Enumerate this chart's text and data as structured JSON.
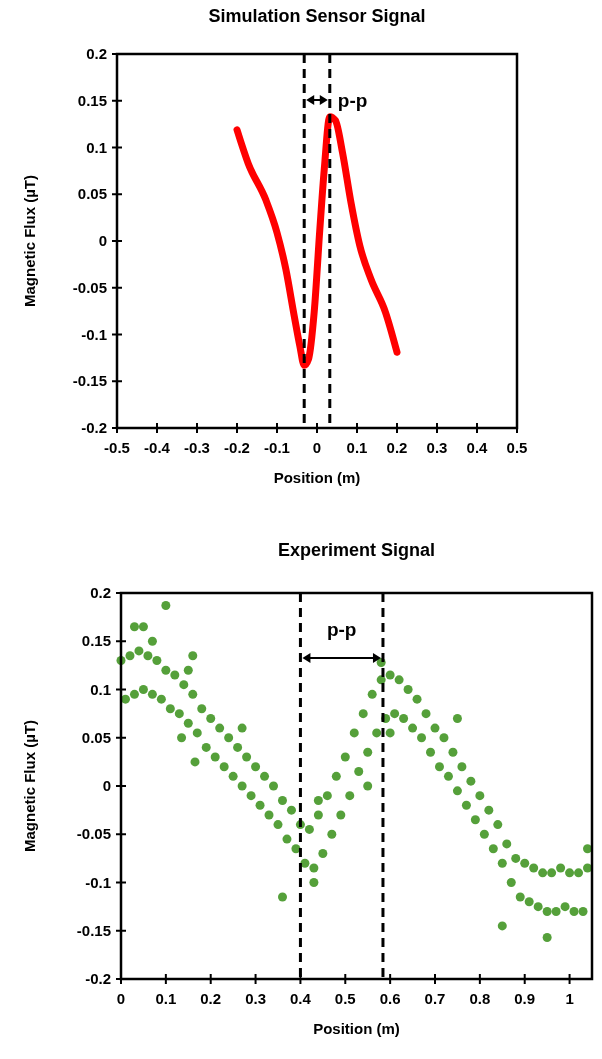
{
  "chart_data": [
    {
      "type": "line",
      "title": "Simulation Sensor Signal",
      "xlabel": "Position (m)",
      "ylabel": "Magnetic Flux (µT)",
      "xlim": [
        -0.5,
        0.5
      ],
      "xticks": [
        -0.5,
        -0.4,
        -0.3,
        -0.2,
        -0.1,
        0,
        0.1,
        0.2,
        0.3,
        0.4,
        0.5
      ],
      "ylim": [
        -0.2,
        0.2
      ],
      "yticks": [
        -0.2,
        -0.15,
        -0.1,
        -0.05,
        0,
        0.05,
        0.1,
        0.15,
        0.2
      ],
      "line_style": "solid",
      "marker": "none",
      "series": [
        {
          "color": "#ff0000",
          "x": [
            -0.2,
            -0.172,
            -0.128,
            -0.1,
            -0.078,
            -0.057,
            -0.043,
            -0.032,
            -0.021,
            -0.007,
            0.007,
            0.018,
            0.032,
            0.046,
            0.064,
            0.085,
            0.107,
            0.135,
            0.171,
            0.2
          ],
          "values": [
            0.119,
            0.083,
            0.044,
            0.009,
            -0.03,
            -0.08,
            -0.112,
            -0.133,
            -0.126,
            -0.076,
            0.012,
            0.076,
            0.133,
            0.129,
            0.094,
            0.041,
            -0.005,
            -0.041,
            -0.076,
            -0.119
          ]
        }
      ],
      "ref_lines": [
        {
          "axis": "x",
          "value": -0.032,
          "color": "#000000",
          "line_style": "dashed"
        },
        {
          "axis": "x",
          "value": 0.032,
          "color": "#000000",
          "line_style": "dashed"
        }
      ],
      "annotations": [
        "p-p"
      ]
    },
    {
      "type": "scatter",
      "title": "Experiment Signal",
      "xlabel": "Position (m)",
      "ylabel": "Magnetic Flux (µT)",
      "xlim": [
        0,
        1.05
      ],
      "xticks": [
        0,
        0.1,
        0.2,
        0.3,
        0.4,
        0.5,
        0.6,
        0.7,
        0.8,
        0.9,
        1
      ],
      "ylim": [
        -0.2,
        0.2
      ],
      "yticks": [
        -0.2,
        -0.15,
        -0.1,
        -0.05,
        0,
        0.05,
        0.1,
        0.15,
        0.2
      ],
      "marker": "circle",
      "series": [
        {
          "color": "#55a03a",
          "x": [
            0,
            0.01,
            0.02,
            0.03,
            0.04,
            0.05,
            0.06,
            0.07,
            0.08,
            0.09,
            0.1,
            0.11,
            0.12,
            0.13,
            0.14,
            0.15,
            0.16,
            0.17,
            0.18,
            0.19,
            0.2,
            0.21,
            0.22,
            0.23,
            0.24,
            0.25,
            0.26,
            0.27,
            0.28,
            0.29,
            0.3,
            0.31,
            0.32,
            0.33,
            0.34,
            0.35,
            0.36,
            0.37,
            0.38,
            0.39,
            0.4,
            0.41,
            0.42,
            0.43,
            0.44,
            0.45,
            0.46,
            0.47,
            0.48,
            0.49,
            0.5,
            0.51,
            0.52,
            0.53,
            0.54,
            0.55,
            0.56,
            0.57,
            0.58,
            0.59,
            0.6,
            0.61,
            0.62,
            0.63,
            0.64,
            0.65,
            0.66,
            0.67,
            0.68,
            0.69,
            0.7,
            0.71,
            0.72,
            0.73,
            0.74,
            0.75,
            0.76,
            0.77,
            0.78,
            0.79,
            0.8,
            0.81,
            0.82,
            0.83,
            0.84,
            0.85,
            0.86,
            0.87,
            0.88,
            0.89,
            0.9,
            0.91,
            0.92,
            0.93,
            0.94,
            0.95,
            0.96,
            0.97,
            0.98,
            0.99,
            1,
            1.01,
            1.02,
            1.03,
            1.04,
            0.1,
            0.03,
            0.05,
            0.07,
            0.16,
            0.15,
            0.135,
            0.165,
            0.36,
            0.43,
            0.85,
            0.95,
            0.27,
            0.58,
            0.6,
            0.75,
            1.04,
            0.44,
            0.55
          ],
          "values": [
            0.13,
            0.09,
            0.135,
            0.095,
            0.14,
            0.1,
            0.135,
            0.095,
            0.13,
            0.09,
            0.12,
            0.08,
            0.115,
            0.075,
            0.105,
            0.065,
            0.095,
            0.055,
            0.08,
            0.04,
            0.07,
            0.03,
            0.06,
            0.02,
            0.05,
            0.01,
            0.04,
            0,
            0.03,
            -0.01,
            0.02,
            -0.02,
            0.01,
            -0.03,
            0,
            -0.04,
            -0.015,
            -0.055,
            -0.025,
            -0.065,
            -0.04,
            -0.08,
            -0.045,
            -0.085,
            -0.03,
            -0.07,
            -0.01,
            -0.05,
            0.01,
            -0.03,
            0.03,
            -0.01,
            0.055,
            0.015,
            0.075,
            0.035,
            0.095,
            0.055,
            0.11,
            0.07,
            0.115,
            0.075,
            0.11,
            0.07,
            0.1,
            0.06,
            0.09,
            0.05,
            0.075,
            0.035,
            0.06,
            0.02,
            0.05,
            0.01,
            0.035,
            -0.005,
            0.02,
            -0.02,
            0.005,
            -0.035,
            -0.01,
            -0.05,
            -0.025,
            -0.065,
            -0.04,
            -0.08,
            -0.06,
            -0.1,
            -0.075,
            -0.115,
            -0.08,
            -0.12,
            -0.085,
            -0.125,
            -0.09,
            -0.13,
            -0.09,
            -0.13,
            -0.085,
            -0.125,
            -0.09,
            -0.13,
            -0.09,
            -0.13,
            -0.085,
            0.187,
            0.165,
            0.165,
            0.15,
            0.135,
            0.12,
            0.05,
            0.025,
            -0.115,
            -0.1,
            -0.145,
            -0.157,
            0.06,
            0.128,
            0.055,
            0.07,
            -0.065,
            -0.015,
            0
          ]
        }
      ],
      "ref_lines": [
        {
          "axis": "x",
          "value": 0.4,
          "color": "#000000",
          "line_style": "dashed"
        },
        {
          "axis": "x",
          "value": 0.584,
          "color": "#000000",
          "line_style": "dashed"
        }
      ],
      "annotations": [
        "p-p"
      ]
    }
  ]
}
